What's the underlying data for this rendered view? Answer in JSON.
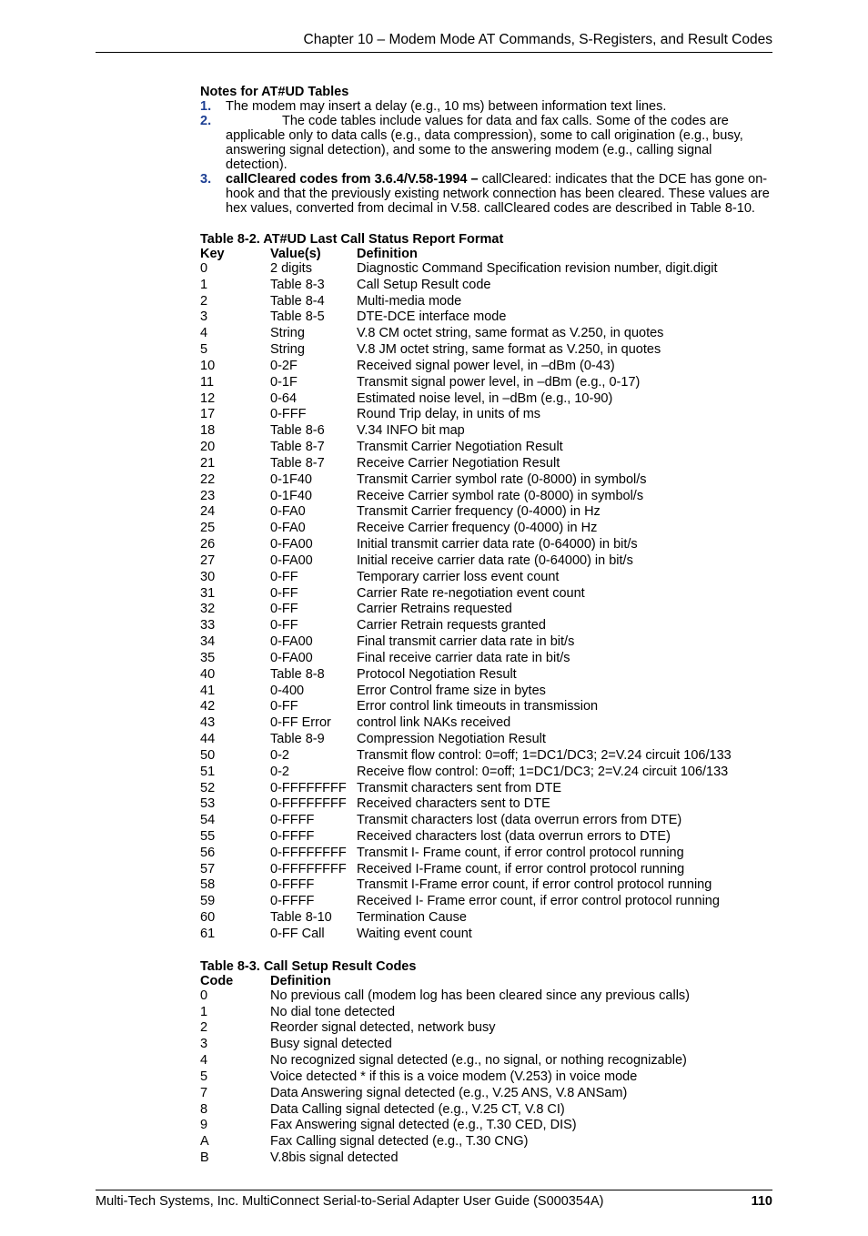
{
  "header": "Chapter 10 – Modem Mode AT Commands, S-Registers, and Result Codes",
  "notes": {
    "title": "Notes for AT#UD Tables",
    "n1_num": "1.",
    "n1": "The modem may insert a delay (e.g., 10 ms) between information text lines.",
    "n2_num": "2.",
    "n2a": "The code tables include values for data and fax calls. Some of the codes are",
    "n2b": "applicable only to data calls (e.g., data compression), some to call origination (e.g., busy, answering signal detection), and some to the answering modem (e.g., calling signal detection).",
    "n3_num": "3.",
    "n3_bold": "callCleared codes from 3.6.4/V.58-1994 –",
    "n3a": " callCleared: indicates that the DCE has gone on-",
    "n3b": "hook and that the previously existing network connection has been cleared. These values are hex values, converted from decimal in V.58. callCleared codes are described in Table 8-10."
  },
  "table82": {
    "title": "Table 8-2. AT#UD Last Call Status Report Format",
    "h_key": "Key",
    "h_val": "Value(s)",
    "h_def": "Definition",
    "rows": [
      {
        "k": "0",
        "v": "2 digits",
        "d": "Diagnostic Command Specification revision number, digit.digit"
      },
      {
        "k": "1",
        "v": "Table 8-3",
        "d": "Call Setup Result code"
      },
      {
        "k": "2",
        "v": "Table 8-4",
        "d": "Multi-media mode"
      },
      {
        "k": "3",
        "v": "Table 8-5",
        "d": "DTE-DCE interface mode"
      },
      {
        "k": "4",
        "v": "String",
        "d": "V.8 CM octet string, same format as V.250, in quotes"
      },
      {
        "k": "5",
        "v": "String",
        "d": "V.8 JM octet string, same format as V.250, in quotes"
      },
      {
        "k": "10",
        "v": "0-2F",
        "d": "Received signal power level, in –dBm (0-43)"
      },
      {
        "k": "11",
        "v": "0-1F",
        "d": "Transmit signal power level, in –dBm (e.g., 0-17)"
      },
      {
        "k": "12",
        "v": "0-64",
        "d": "Estimated noise level, in –dBm (e.g., 10-90)"
      },
      {
        "k": "17",
        "v": "0-FFF",
        "d": "Round Trip delay, in units of ms"
      },
      {
        "k": "18",
        "v": "Table 8-6",
        "d": "V.34 INFO bit map"
      },
      {
        "k": "20",
        "v": "Table 8-7",
        "d": "Transmit Carrier Negotiation Result"
      },
      {
        "k": "21",
        "v": "Table 8-7",
        "d": "Receive Carrier Negotiation Result"
      },
      {
        "k": "22",
        "v": "0-1F40",
        "d": "Transmit Carrier symbol rate (0-8000) in symbol/s"
      },
      {
        "k": "23",
        "v": "0-1F40",
        "d": "Receive Carrier symbol rate (0-8000) in symbol/s"
      },
      {
        "k": "24",
        "v": "0-FA0",
        "d": "Transmit Carrier frequency (0-4000) in Hz"
      },
      {
        "k": "25",
        "v": "0-FA0",
        "d": "Receive Carrier frequency (0-4000) in Hz"
      },
      {
        "k": "26",
        "v": "0-FA00",
        "d": "Initial transmit carrier data rate (0-64000) in bit/s"
      },
      {
        "k": "27",
        "v": "0-FA00",
        "d": "Initial receive carrier data rate (0-64000) in bit/s"
      },
      {
        "k": "30",
        "v": "0-FF",
        "d": "Temporary carrier loss event count"
      },
      {
        "k": "31",
        "v": "0-FF",
        "d": "Carrier Rate re-negotiation event count"
      },
      {
        "k": "32",
        "v": "0-FF",
        "d": "Carrier Retrains requested"
      },
      {
        "k": "33",
        "v": "0-FF",
        "d": "Carrier Retrain requests granted"
      },
      {
        "k": "34",
        "v": "0-FA00",
        "d": "Final transmit carrier data rate in bit/s"
      },
      {
        "k": "35",
        "v": "0-FA00",
        "d": "Final receive carrier data rate in bit/s"
      },
      {
        "k": "40",
        "v": "Table 8-8",
        "d": "Protocol Negotiation Result"
      },
      {
        "k": "41",
        "v": "0-400",
        "d": "Error Control frame size in bytes"
      },
      {
        "k": "42",
        "v": "0-FF",
        "d": "Error control link timeouts in transmission"
      },
      {
        "k": "43",
        "v": "0-FF Error",
        "d": "control link NAKs received"
      },
      {
        "k": "44",
        "v": "Table 8-9",
        "d": "Compression Negotiation Result"
      },
      {
        "k": "50",
        "v": "0-2",
        "d": "Transmit flow control: 0=off; 1=DC1/DC3; 2=V.24 circuit 106/133"
      },
      {
        "k": "51",
        "v": "0-2",
        "d": "Receive flow control: 0=off; 1=DC1/DC3; 2=V.24 circuit 106/133"
      },
      {
        "k": "52",
        "v": "0-FFFFFFFF",
        "d": "Transmit characters sent from DTE"
      },
      {
        "k": "53",
        "v": "0-FFFFFFFF",
        "d": "Received characters sent to DTE"
      },
      {
        "k": "54",
        "v": "0-FFFF",
        "d": "Transmit characters lost (data overrun errors from DTE)"
      },
      {
        "k": "55",
        "v": "0-FFFF",
        "d": "Received characters lost (data overrun errors to DTE)"
      },
      {
        "k": "56",
        "v": "0-FFFFFFFF",
        "d": "Transmit I- Frame count, if error control protocol running"
      },
      {
        "k": "57",
        "v": "0-FFFFFFFF",
        "d": "Received I-Frame count, if error control protocol running"
      },
      {
        "k": "58",
        "v": "0-FFFF",
        "d": "Transmit I-Frame error count, if error control protocol running"
      },
      {
        "k": "59",
        "v": "0-FFFF",
        "d": "Received I- Frame error count, if error control protocol running"
      },
      {
        "k": "60",
        "v": "Table 8-10",
        "d": "Termination Cause"
      },
      {
        "k": "61",
        "v": "0-FF Call",
        "d": "Waiting event count"
      }
    ]
  },
  "table83": {
    "title": "Table 8-3. Call Setup Result Codes",
    "h_code": "Code",
    "h_def": "Definition",
    "rows": [
      {
        "c": "0",
        "d": "No previous call (modem log has been cleared since any previous calls)"
      },
      {
        "c": "1",
        "d": "No dial tone detected"
      },
      {
        "c": "2",
        "d": "Reorder signal detected, network busy"
      },
      {
        "c": "3",
        "d": "Busy signal detected"
      },
      {
        "c": "4",
        "d": "No recognized signal detected (e.g., no signal, or nothing recognizable)"
      },
      {
        "c": "5",
        "d": "Voice detected * if this is a voice modem (V.253) in voice mode"
      },
      {
        "c": "7",
        "d": "Data Answering signal detected (e.g., V.25 ANS, V.8 ANSam)"
      },
      {
        "c": "8",
        "d": "Data Calling signal detected (e.g., V.25 CT, V.8 CI)"
      },
      {
        "c": "9",
        "d": "Fax Answering signal detected (e.g., T.30 CED, DIS)"
      },
      {
        "c": "A",
        "d": "Fax Calling signal detected (e.g., T.30 CNG)"
      },
      {
        "c": "B",
        "d": "V.8bis signal detected"
      }
    ]
  },
  "footer": {
    "left": "Multi-Tech Systems, Inc. MultiConnect Serial-to-Serial Adapter User Guide (S000354A)",
    "page": "110"
  }
}
